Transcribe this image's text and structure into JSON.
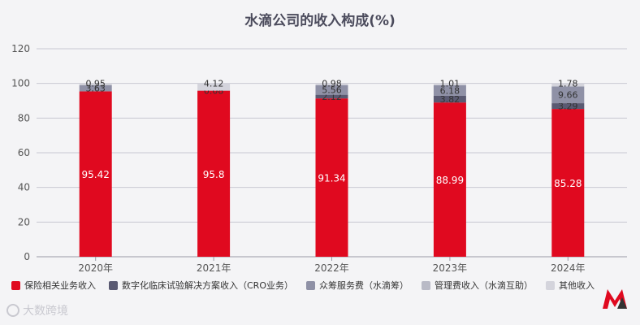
{
  "chart_data": {
    "type": "bar",
    "stacked": true,
    "title": "水滴公司的收入构成(%)",
    "categories": [
      "2020年",
      "2021年",
      "2022年",
      "2023年",
      "2024年"
    ],
    "ylim": [
      0,
      120
    ],
    "yticks": [
      0,
      20,
      40,
      60,
      80,
      100,
      120
    ],
    "grid": true,
    "legend_position": "bottom",
    "series": [
      {
        "name": "保险相关业务收入",
        "color": "#e0091f",
        "values": [
          95.42,
          95.8,
          91.34,
          88.99,
          85.28
        ],
        "labels": [
          "95.42",
          "95.8",
          "91.34",
          "88.99",
          "85.28"
        ]
      },
      {
        "name": "数字化临床试验解决方案收入（CRO业务）",
        "color": "#5a5a72",
        "values": [
          0,
          0,
          2.12,
          3.82,
          3.29
        ],
        "labels": [
          "",
          "",
          "2.12",
          "3.82",
          "3.29"
        ]
      },
      {
        "name": "众筹服务费（水滴筹）",
        "color": "#8f91a6",
        "values": [
          3.63,
          0.08,
          5.56,
          6.18,
          9.66
        ],
        "labels": [
          "3.63",
          "0.08",
          "5.56",
          "6.18",
          "9.66"
        ]
      },
      {
        "name": "管理费收入（水滴互助）",
        "color": "#b9bac6",
        "values": [
          0,
          0,
          0,
          0,
          0
        ],
        "labels": [
          "",
          "",
          "",
          "",
          ""
        ]
      },
      {
        "name": "其他收入",
        "color": "#d4d4dc",
        "values": [
          0.95,
          4.12,
          0.98,
          1.01,
          1.78
        ],
        "labels": [
          "0.95",
          "4.12",
          "0.98",
          "1.01",
          "1.78"
        ]
      }
    ]
  },
  "watermark": {
    "text": "大数跨境",
    "icon": "brand-logo-icon"
  }
}
